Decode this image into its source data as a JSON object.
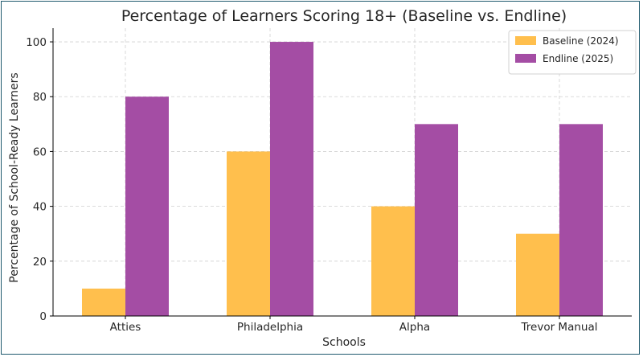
{
  "chart_data": {
    "type": "bar",
    "title": "Percentage of Learners Scoring 18+ (Baseline vs. Endline)",
    "xlabel": "Schools",
    "ylabel": "Percentage of School-Ready Learners",
    "categories": [
      "Atties",
      "Philadelphia",
      "Alpha",
      "Trevor Manual"
    ],
    "series": [
      {
        "name": "Baseline (2024)",
        "values": [
          10,
          60,
          40,
          30
        ],
        "color": "#ffbf4d"
      },
      {
        "name": "Endline (2025)",
        "values": [
          80,
          100,
          70,
          70
        ],
        "color": "#a44da4"
      }
    ],
    "ylim": [
      0,
      105
    ],
    "yticks": [
      0,
      20,
      40,
      60,
      80,
      100
    ],
    "grid": true,
    "legend_position": "top-right"
  }
}
